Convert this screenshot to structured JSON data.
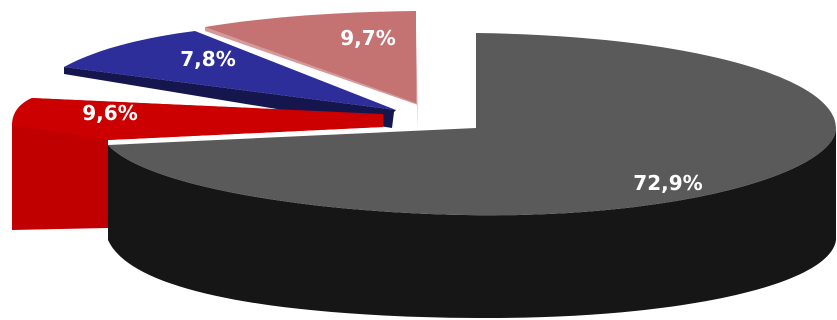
{
  "chart_data": {
    "type": "pie",
    "title": "",
    "style": "3d-exploded",
    "legend": "none",
    "slices": [
      {
        "label": "72,9%",
        "value": 72.9,
        "top_color": "#5a5a5a",
        "side_color": "#161616"
      },
      {
        "label": "9,6%",
        "value": 9.6,
        "top_color": "#cc0000",
        "side_color": "#c00000"
      },
      {
        "label": "7,8%",
        "value": 7.8,
        "top_color": "#2e2e9a",
        "side_color": "#16164e"
      },
      {
        "label": "9,7%",
        "value": 9.7,
        "top_color": "#c47272",
        "side_color": "#d49a9a"
      }
    ]
  }
}
